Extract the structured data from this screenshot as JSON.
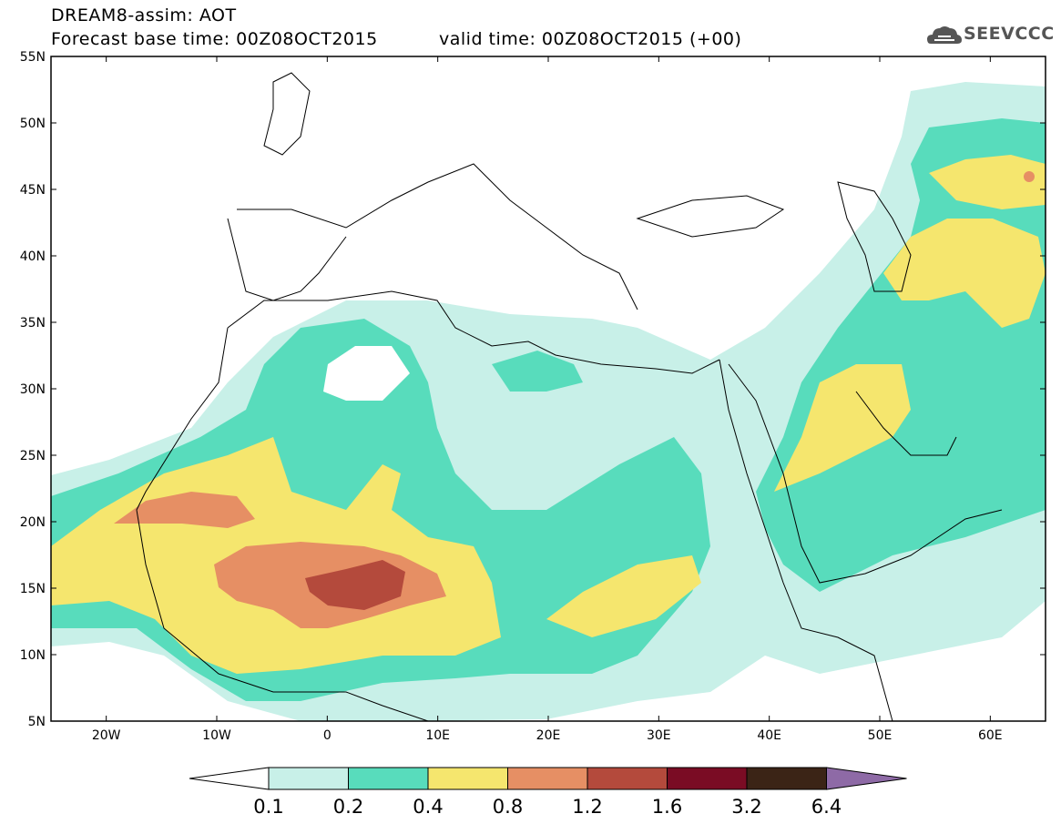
{
  "header": {
    "title": "DREAM8-assim: AOT",
    "base_time": "Forecast base time: 00Z08OCT2015",
    "valid_time": "valid time: 00Z08OCT2015 (+00)",
    "logo_text": "SEEVCCC"
  },
  "map": {
    "lat_labels": [
      "55N",
      "50N",
      "45N",
      "40N",
      "35N",
      "30N",
      "25N",
      "20N",
      "15N",
      "10N",
      "5N"
    ],
    "lon_labels": [
      "20W",
      "10W",
      "0",
      "10E",
      "20E",
      "30E",
      "40E",
      "50E",
      "60E"
    ],
    "lat_range": [
      5,
      55
    ],
    "lon_range": [
      -25,
      65
    ]
  },
  "legend": {
    "labels": [
      "0.1",
      "0.2",
      "0.4",
      "0.8",
      "1.2",
      "1.6",
      "3.2",
      "6.4"
    ],
    "colors": [
      "#ffffff",
      "#c8f0e8",
      "#58dcbc",
      "#f5e66e",
      "#e68f64",
      "#b44a3c",
      "#7a0c24",
      "#3b2416",
      "#8e6aa6"
    ]
  }
}
